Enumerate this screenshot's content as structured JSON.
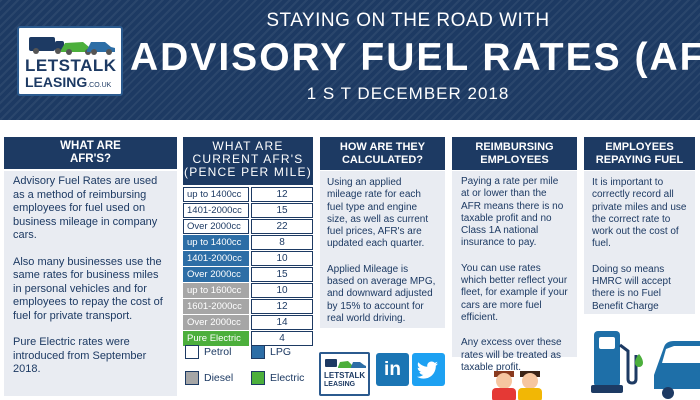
{
  "header": {
    "logo_line1": "LETSTALK",
    "logo_line2": "LEASING",
    "logo_domain": ".CO.UK",
    "top_line": "STAYING ON THE ROAD WITH",
    "title": "ADVISORY FUEL RATES (AFR)",
    "date": "1 S T  DECEMBER  2018"
  },
  "what_are": {
    "heading_l1": "WHAT ARE",
    "heading_l2": "AFR'S?",
    "para1": "Advisory Fuel Rates are used as a method of reimbursing employees for fuel used on business mileage in company cars.",
    "para2": "Also many businesses use the same rates for business miles in personal vehicles and for employees to repay the cost of fuel for private transport.",
    "para3": "Pure Electric rates were introduced from September 2018."
  },
  "current_rates": {
    "heading_l1": "WHAT ARE",
    "heading_l2": "CURRENT AFR'S",
    "heading_l3": "(PENCE PER MILE)",
    "rows": [
      {
        "band": "up to 1400cc",
        "value": "12",
        "fuel": "petrol"
      },
      {
        "band": "1401-2000cc",
        "value": "15",
        "fuel": "petrol"
      },
      {
        "band": "Over 2000cc",
        "value": "22",
        "fuel": "petrol"
      },
      {
        "band": "up to 1400cc",
        "value": "8",
        "fuel": "lpg"
      },
      {
        "band": "1401-2000cc",
        "value": "10",
        "fuel": "lpg"
      },
      {
        "band": "Over 2000cc",
        "value": "15",
        "fuel": "lpg"
      },
      {
        "band": "up to 1600cc",
        "value": "10",
        "fuel": "diesel"
      },
      {
        "band": "1601-2000cc",
        "value": "12",
        "fuel": "diesel"
      },
      {
        "band": "Over 2000cc",
        "value": "14",
        "fuel": "diesel"
      },
      {
        "band": "Pure Electric",
        "value": "4",
        "fuel": "electric"
      }
    ],
    "legend": {
      "petrol": "Petrol",
      "lpg": "LPG",
      "diesel": "Diesel",
      "electric": "Electric"
    }
  },
  "how_calculated": {
    "heading_l1": "HOW ARE THEY",
    "heading_l2": "CALCULATED?",
    "para1": "Using an applied mileage rate for each fuel type and engine size, as well as current fuel prices, AFR's are updated each quarter.",
    "para2": "Applied Mileage is based on average MPG, and downward adjusted by 15% to account for real world driving."
  },
  "reimbursing": {
    "heading_l1": "REIMBURSING",
    "heading_l2": "EMPLOYEES",
    "para1": "Paying a rate per mile at or lower than the AFR means there is no taxable profit and no Class 1A national insurance to pay.",
    "para2": "You can use rates which better reflect your fleet, for example if your cars are more fuel efficient.",
    "para3": "Any excess over these rates will be treated as taxable profit."
  },
  "repaying": {
    "heading_l1": "EMPLOYEES",
    "heading_l2": "REPAYING FUEL",
    "para1": "It is important to correctly record all private miles and use the correct rate to work out the cost of fuel.",
    "para2": "Doing so means HMRC will accept there is no Fuel Benefit Charge"
  },
  "footer": {
    "logo_line1": "LETSTALK",
    "logo_line2": "LEASING",
    "linkedin_glyph": "in",
    "social_icons": [
      "linkedin-icon",
      "twitter-icon"
    ]
  },
  "colors": {
    "navy": "#1d3a63",
    "panel": "#e9ecf2",
    "lpg": "#2d6ea6",
    "diesel": "#a6a6a6",
    "electric": "#4caf3c"
  }
}
